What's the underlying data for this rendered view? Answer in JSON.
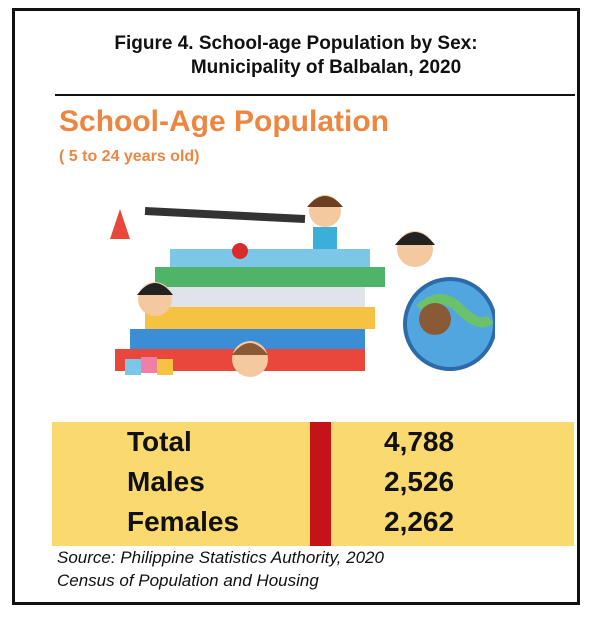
{
  "header": {
    "title": [
      "Figure 4. School-age Population by Sex:",
      "Municipality of Balbalan, 2020"
    ]
  },
  "heading": "School-Age Population",
  "subheading": "( 5 to 24 years old)",
  "table": {
    "rows": [
      [
        "Total",
        "4,788"
      ],
      [
        "Males",
        "2,526"
      ],
      [
        "Females",
        "2,262"
      ]
    ]
  },
  "source": [
    "Source: Philippine Statistics Authority, 2020",
    "Census of Population and Housing"
  ]
}
